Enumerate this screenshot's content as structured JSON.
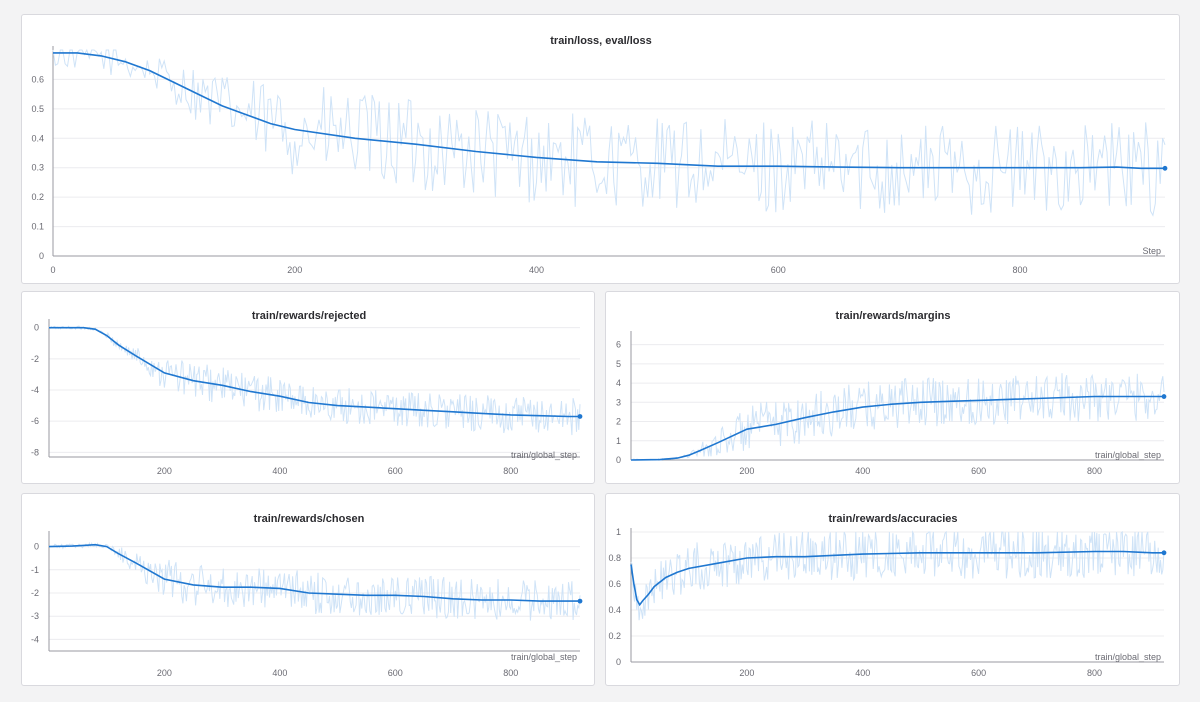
{
  "colors": {
    "series": "#1f77d0",
    "raw": "#cfe3f7",
    "grid": "#ececef",
    "axis": "#9a9aa2"
  },
  "chart_data": [
    {
      "id": "loss",
      "type": "line",
      "title": "train/loss, eval/loss",
      "xlabel": "Step",
      "xlim": [
        0,
        920
      ],
      "ylim": [
        0,
        0.7
      ],
      "xticks": [
        0,
        200,
        400,
        600,
        800
      ],
      "yticks": [
        0,
        0.1,
        0.2,
        0.3,
        0.4,
        0.5,
        0.6
      ],
      "ytick_labels": [
        "0",
        "0.1",
        "0.2",
        "0.3",
        "0.4",
        "0.5",
        "0.6"
      ],
      "series": [
        {
          "name": "smoothed",
          "x": [
            0,
            20,
            40,
            60,
            80,
            100,
            120,
            140,
            160,
            180,
            200,
            250,
            300,
            350,
            400,
            450,
            500,
            550,
            600,
            650,
            700,
            750,
            800,
            850,
            880,
            900,
            920
          ],
          "values": [
            0.69,
            0.69,
            0.68,
            0.66,
            0.63,
            0.59,
            0.55,
            0.51,
            0.48,
            0.45,
            0.43,
            0.4,
            0.38,
            0.355,
            0.335,
            0.32,
            0.315,
            0.305,
            0.305,
            0.302,
            0.3,
            0.3,
            0.3,
            0.3,
            0.302,
            0.298,
            0.298
          ]
        }
      ],
      "noise": {
        "start": 0.7,
        "amp_early": 0.06,
        "amp_late": 0.16,
        "spread_from": 80
      }
    },
    {
      "id": "rejected",
      "type": "line",
      "title": "train/rewards/rejected",
      "xlabel": "train/global_step",
      "xlim": [
        0,
        920
      ],
      "ylim": [
        -8.3,
        0.3
      ],
      "xticks": [
        200,
        400,
        600,
        800
      ],
      "yticks": [
        0,
        -2,
        -4,
        -6,
        -8
      ],
      "ytick_labels": [
        "0",
        "-2",
        "-4",
        "-6",
        "-8"
      ],
      "series": [
        {
          "name": "smoothed",
          "x": [
            0,
            60,
            80,
            100,
            120,
            150,
            200,
            250,
            300,
            350,
            400,
            450,
            500,
            550,
            600,
            650,
            700,
            750,
            800,
            850,
            900,
            920
          ],
          "values": [
            0,
            0,
            -0.1,
            -0.5,
            -1.1,
            -1.8,
            -2.9,
            -3.4,
            -3.7,
            -4.1,
            -4.4,
            -4.8,
            -5.0,
            -5.1,
            -5.2,
            -5.3,
            -5.4,
            -5.5,
            -5.6,
            -5.65,
            -5.7,
            -5.7
          ]
        }
      ],
      "noise": {
        "start": 0.0,
        "amp_early": 0.1,
        "amp_late": 1.2,
        "spread_from": 90
      }
    },
    {
      "id": "margins",
      "type": "line",
      "title": "train/rewards/margins",
      "xlabel": "train/global_step",
      "xlim": [
        0,
        920
      ],
      "ylim": [
        0,
        6.5
      ],
      "xticks": [
        200,
        400,
        600,
        800
      ],
      "yticks": [
        0,
        1,
        2,
        3,
        4,
        5,
        6
      ],
      "ytick_labels": [
        "0",
        "1",
        "2",
        "3",
        "4",
        "5",
        "6"
      ],
      "series": [
        {
          "name": "smoothed",
          "x": [
            0,
            50,
            80,
            100,
            120,
            150,
            200,
            250,
            300,
            350,
            400,
            450,
            500,
            550,
            600,
            650,
            700,
            750,
            800,
            850,
            900,
            920
          ],
          "values": [
            0,
            0.02,
            0.1,
            0.25,
            0.5,
            0.9,
            1.6,
            1.85,
            2.2,
            2.5,
            2.75,
            2.9,
            3.0,
            3.05,
            3.1,
            3.15,
            3.2,
            3.25,
            3.3,
            3.3,
            3.3,
            3.3
          ]
        }
      ],
      "noise": {
        "start": 0.0,
        "amp_early": 0.05,
        "amp_late": 1.3,
        "spread_from": 90
      }
    },
    {
      "id": "chosen",
      "type": "line",
      "title": "train/rewards/chosen",
      "xlabel": "train/global_step",
      "xlim": [
        0,
        920
      ],
      "ylim": [
        -4.5,
        0.5
      ],
      "xticks": [
        200,
        400,
        600,
        800
      ],
      "yticks": [
        0,
        -1,
        -2,
        -3,
        -4
      ],
      "ytick_labels": [
        "0",
        "-1",
        "-2",
        "-3",
        "-4"
      ],
      "series": [
        {
          "name": "smoothed",
          "x": [
            0,
            40,
            60,
            80,
            100,
            120,
            150,
            200,
            250,
            300,
            350,
            400,
            450,
            500,
            550,
            600,
            650,
            700,
            750,
            800,
            850,
            900,
            920
          ],
          "values": [
            0,
            0.02,
            0.05,
            0.08,
            0,
            -0.3,
            -0.7,
            -1.4,
            -1.65,
            -1.75,
            -1.75,
            -1.8,
            -2.0,
            -2.05,
            -2.1,
            -2.1,
            -2.15,
            -2.25,
            -2.3,
            -2.3,
            -2.35,
            -2.35,
            -2.35
          ]
        }
      ],
      "noise": {
        "start": 0.0,
        "amp_early": 0.1,
        "amp_late": 0.9,
        "spread_from": 90
      }
    },
    {
      "id": "accuracies",
      "type": "line",
      "title": "train/rewards/accuracies",
      "xlabel": "train/global_step",
      "xlim": [
        0,
        920
      ],
      "ylim": [
        0,
        1
      ],
      "xticks": [
        200,
        400,
        600,
        800
      ],
      "yticks": [
        0,
        0.2,
        0.4,
        0.6,
        0.8,
        1
      ],
      "ytick_labels": [
        "0",
        "0.2",
        "0.4",
        "0.6",
        "0.8",
        "1"
      ],
      "series": [
        {
          "name": "smoothed",
          "x": [
            0,
            5,
            10,
            15,
            20,
            30,
            40,
            60,
            80,
            100,
            150,
            200,
            250,
            300,
            400,
            500,
            600,
            700,
            800,
            850,
            900,
            920
          ],
          "values": [
            0.75,
            0.6,
            0.48,
            0.44,
            0.47,
            0.52,
            0.58,
            0.65,
            0.69,
            0.72,
            0.76,
            0.8,
            0.81,
            0.81,
            0.83,
            0.84,
            0.84,
            0.84,
            0.85,
            0.85,
            0.84,
            0.84
          ]
        }
      ],
      "noise": {
        "start": 0.75,
        "amp_early": 0.15,
        "amp_late": 0.2,
        "spread_from": 10
      }
    }
  ]
}
